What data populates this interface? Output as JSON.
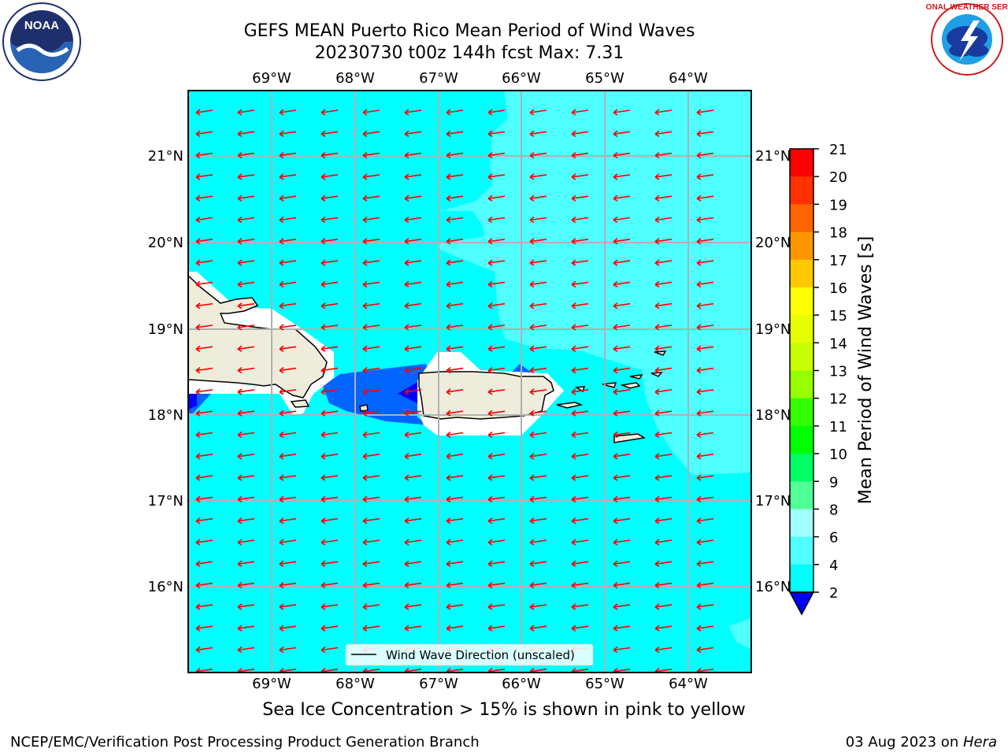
{
  "title": {
    "line1": "GEFS MEAN Puerto Rico Mean Period of Wind Waves",
    "line2": "20230730 t00z 144h fcst   Max: 7.31"
  },
  "map": {
    "lon_labels": [
      "69°W",
      "68°W",
      "67°W",
      "66°W",
      "65°W",
      "64°W"
    ],
    "lat_labels": [
      "21°N",
      "20°N",
      "19°N",
      "18°N",
      "17°N",
      "16°N"
    ],
    "lon_range": [
      -70.0,
      -63.3
    ],
    "lat_range": [
      15.0,
      21.75
    ],
    "legend_label": "Wind Wave Direction (unscaled)",
    "arrow_color": "#ff0000",
    "land_color": "#eeeddc",
    "ocean_colors": {
      "2-4": "#0064ff",
      "4-6": "#00ffff",
      "6-8": "#50ffff",
      "<2": "#0000ff"
    }
  },
  "colorbar": {
    "label": "Mean Period of Wind Waves [s]",
    "ticks": [
      "21",
      "20",
      "19",
      "18",
      "17",
      "16",
      "15",
      "14",
      "13",
      "12",
      "11",
      "10",
      "9",
      "8",
      "6",
      "4",
      "2"
    ],
    "colors": [
      "#ff0000",
      "#ff3200",
      "#ff6400",
      "#ff9600",
      "#ffc800",
      "#ffff00",
      "#e6ff00",
      "#c8ff00",
      "#96ff00",
      "#32ff00",
      "#00ff00",
      "#00ff64",
      "#50ff96",
      "#a0ffff",
      "#50ffff",
      "#00ffff",
      "#0064ff"
    ],
    "under_color": "#0000ff"
  },
  "note": "Sea Ice Concentration > 15% is shown in pink to yellow",
  "footer": {
    "left": "NCEP/EMC/Verification Post Processing Product Generation Branch",
    "right_prefix": "03 Aug 2023 on ",
    "right_host": "Hera"
  },
  "logos": {
    "noaa_text": "NOAA",
    "nws_text": "NATIONAL WEATHER SERVICE"
  }
}
